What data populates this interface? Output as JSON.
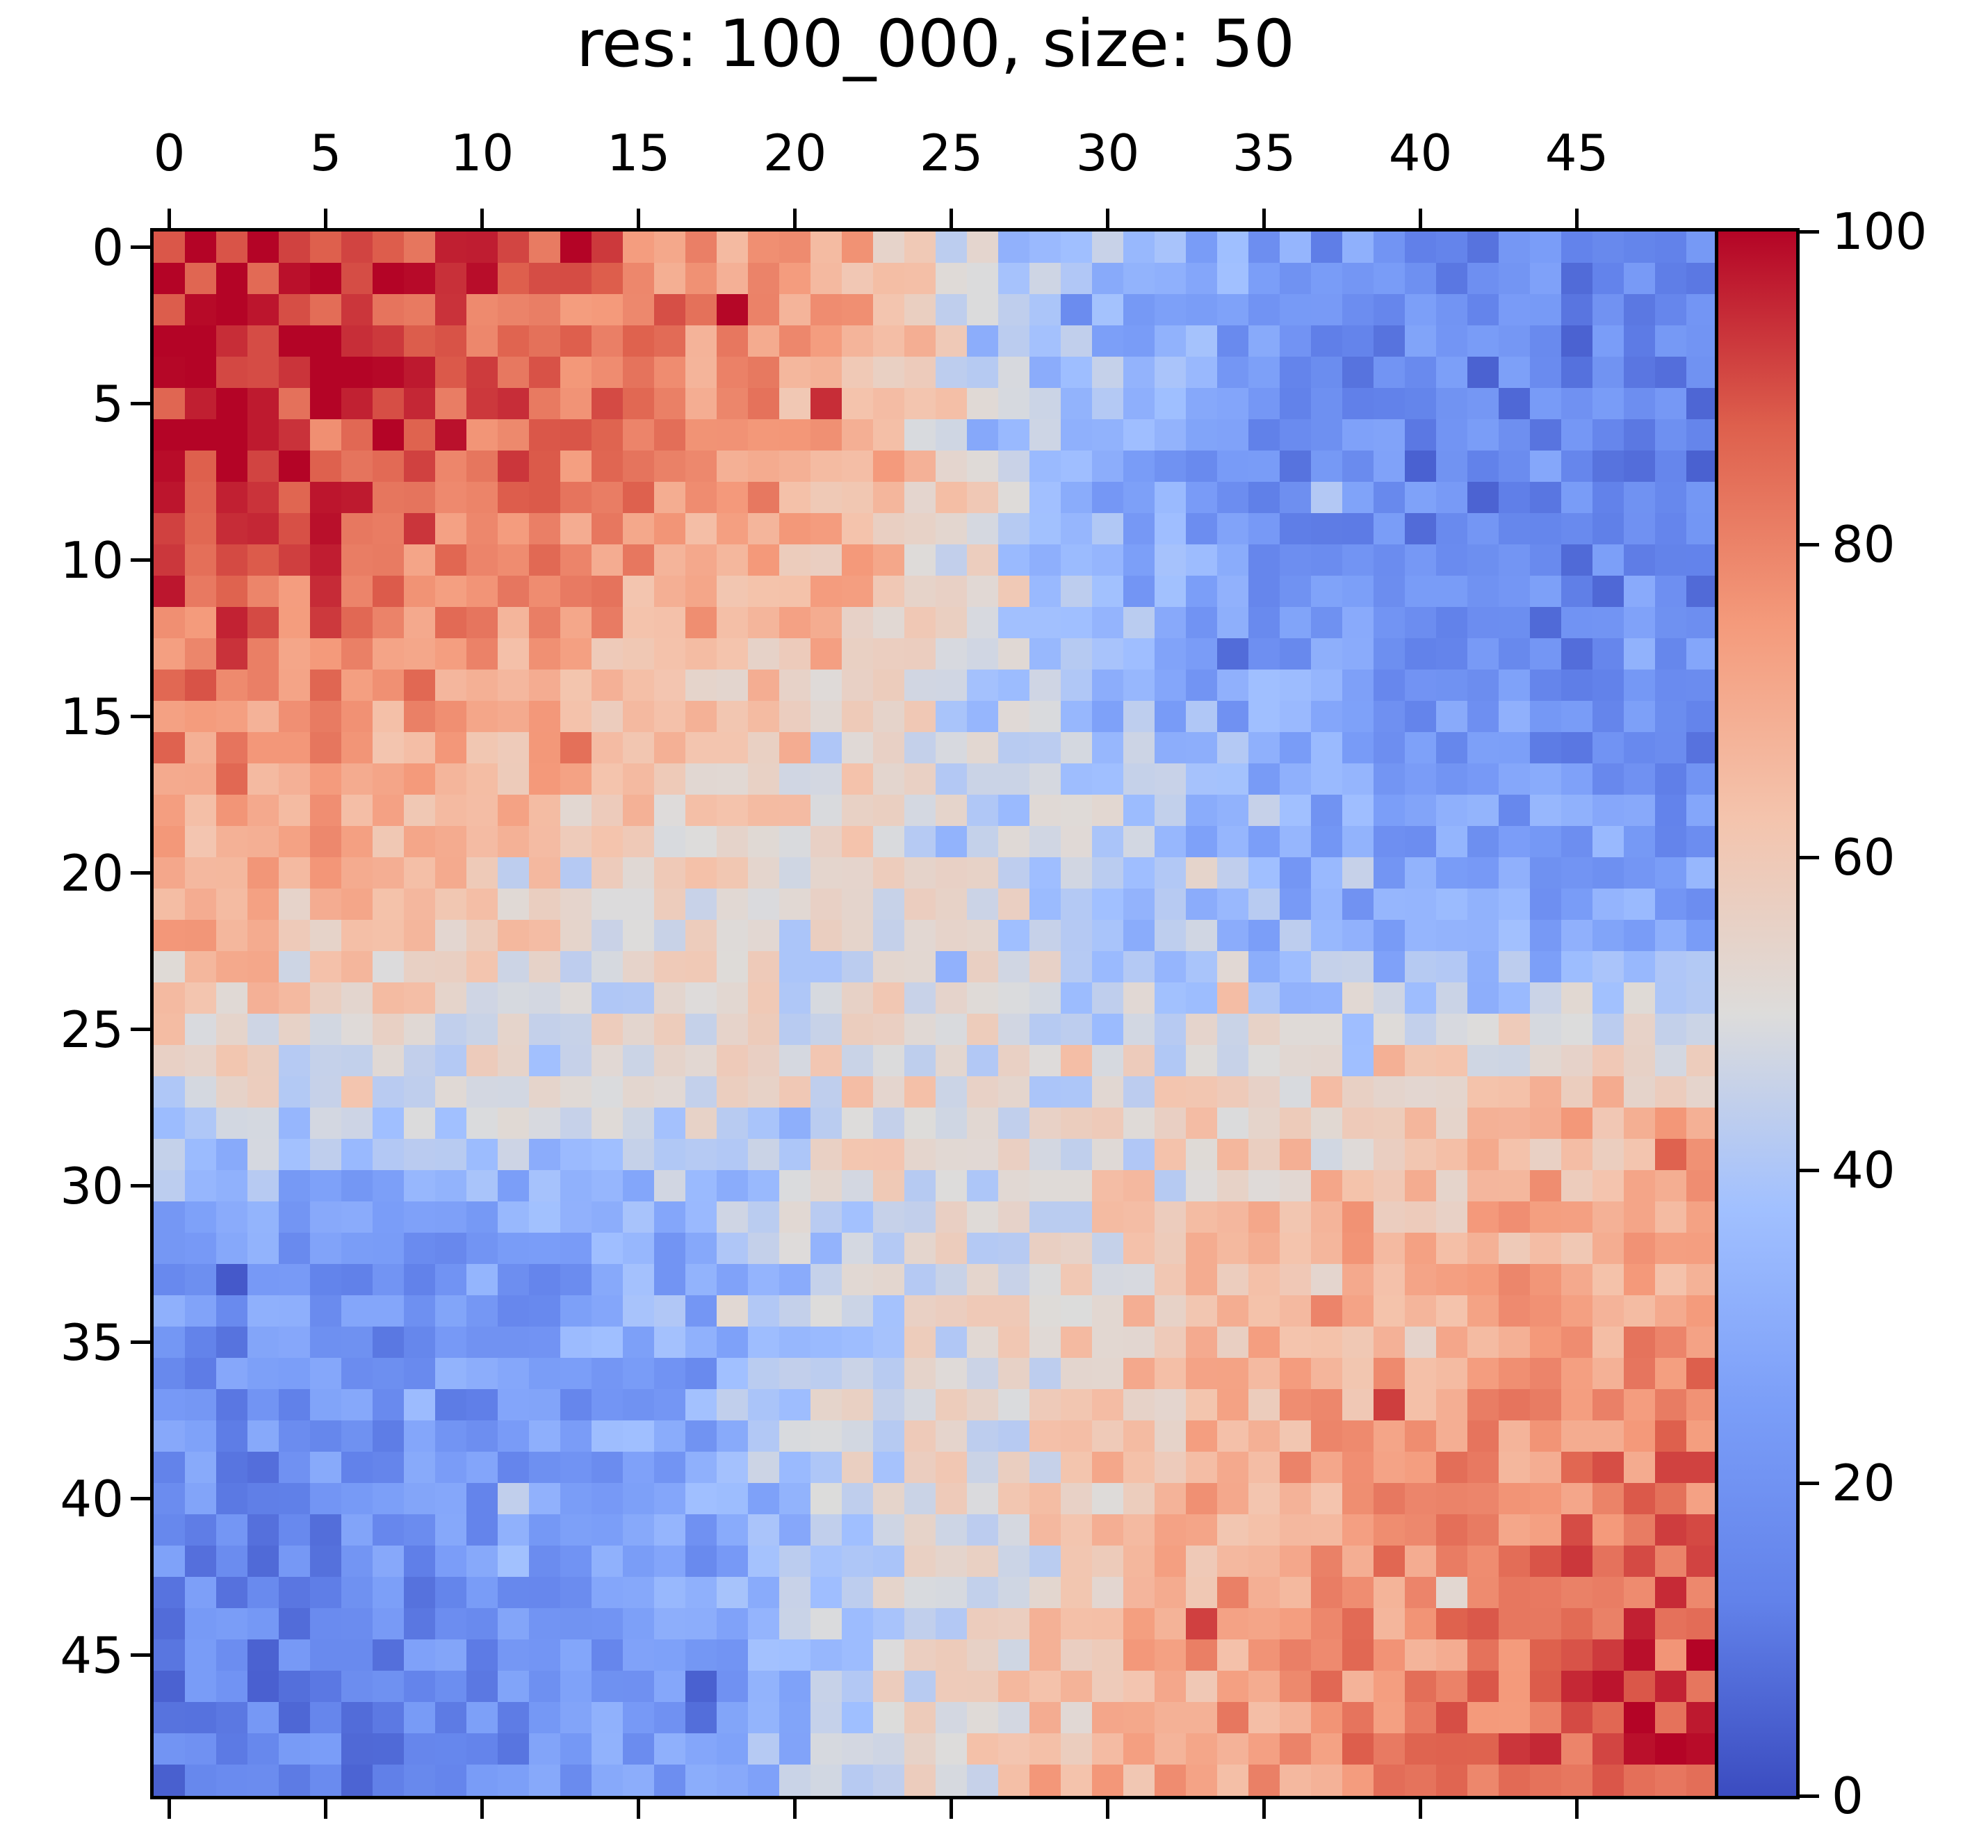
{
  "figure": {
    "title": "res: 100_000, size: 50",
    "background_color": "#ffffff",
    "text_color": "#000000",
    "spine_color": "#000000"
  },
  "chart_data": {
    "type": "heatmap",
    "title": "res: 100_000, size: 50",
    "grid_size": 50,
    "x_ticks": [
      0,
      5,
      10,
      15,
      20,
      25,
      30,
      35,
      40,
      45
    ],
    "y_ticks": [
      0,
      5,
      10,
      15,
      20,
      25,
      30,
      35,
      40,
      45
    ],
    "x_tick_side": "top",
    "grid": false,
    "colorbar": {
      "position": "right",
      "vmin": 0,
      "vmax": 100,
      "ticks": [
        0,
        20,
        40,
        60,
        80,
        100
      ]
    },
    "colormap": {
      "name": "coolwarm",
      "stops": [
        {
          "t": 0.0,
          "color": "#3b4cc0"
        },
        {
          "t": 0.125,
          "color": "#6282ea"
        },
        {
          "t": 0.25,
          "color": "#7b9ef8"
        },
        {
          "t": 0.375,
          "color": "#a1c0ff"
        },
        {
          "t": 0.5,
          "color": "#dddcdb"
        },
        {
          "t": 0.625,
          "color": "#f4c4ad"
        },
        {
          "t": 0.75,
          "color": "#f49a7b"
        },
        {
          "t": 0.875,
          "color": "#de604d"
        },
        {
          "t": 1.0,
          "color": "#b40426"
        }
      ]
    },
    "coarse_grid_block_size": 5,
    "coarse_grid_comment": "10x10 block means (5x5 cells per block) estimated from the rendered 50x50 matrix, rows top-to-bottom",
    "coarse_grid": [
      [
        97,
        93,
        85,
        78,
        68,
        42,
        30,
        22,
        17,
        13
      ],
      [
        95,
        90,
        84,
        75,
        70,
        46,
        28,
        18,
        14,
        13
      ],
      [
        85,
        80,
        73,
        68,
        63,
        40,
        30,
        22,
        18,
        16
      ],
      [
        75,
        70,
        66,
        60,
        57,
        45,
        35,
        27,
        24,
        20
      ],
      [
        65,
        60,
        56,
        53,
        48,
        47,
        38,
        32,
        28,
        30
      ],
      [
        48,
        50,
        45,
        48,
        55,
        50,
        52,
        58,
        62,
        65
      ],
      [
        22,
        20,
        25,
        32,
        45,
        50,
        60,
        65,
        68,
        72
      ],
      [
        20,
        20,
        24,
        30,
        48,
        52,
        63,
        70,
        73,
        78
      ],
      [
        17,
        18,
        22,
        27,
        45,
        55,
        68,
        74,
        78,
        85
      ],
      [
        13,
        16,
        20,
        25,
        45,
        58,
        70,
        76,
        83,
        93
      ]
    ],
    "render_noise": {
      "noise_amplitude": 11,
      "speckle_amplitude": 16,
      "speckle_fraction": 0.08,
      "noise_seed": 3
    }
  }
}
